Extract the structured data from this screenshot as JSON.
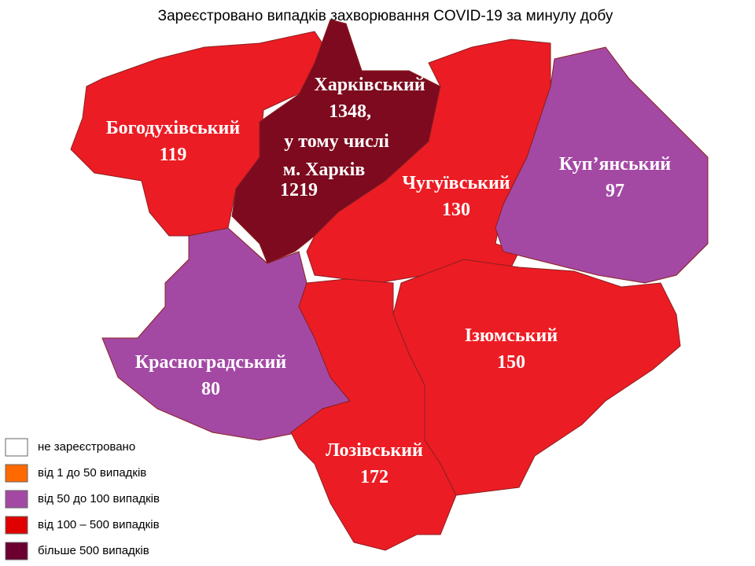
{
  "title": "Зареєстровано випадків захворювання COVID-19 за минулу добу",
  "regions": [
    {
      "name": "Богодухівський",
      "value": 119,
      "color": "#ec1c24"
    },
    {
      "name": "Харківський",
      "value": 1348,
      "value_label": "1348,",
      "note": "у тому числі",
      "city": "м. Харків",
      "city_value": 1219,
      "color": "#7d0a1e"
    },
    {
      "name": "Чугуївський",
      "value": 130,
      "color": "#ec1c24"
    },
    {
      "name": "Куп’янський",
      "value": 97,
      "color": "#a349a4"
    },
    {
      "name": "Красноградський",
      "value": 80,
      "color": "#a349a4"
    },
    {
      "name": "Ізюмський",
      "value": 150,
      "color": "#ec1c24"
    },
    {
      "name": "Лозівський",
      "value": 172,
      "color": "#ec1c24"
    }
  ],
  "legend": [
    {
      "label": "не зареєстровано",
      "color": "#ffffff"
    },
    {
      "label": "від 1 до 50  випадків",
      "color": "#ff6a00"
    },
    {
      "label": "від 50 до 100  випадків",
      "color": "#a349a4"
    },
    {
      "label": "від 100 – 500  випадків",
      "color": "#e00000"
    },
    {
      "label": "більше 500  випадків",
      "color": "#6b0030"
    }
  ]
}
